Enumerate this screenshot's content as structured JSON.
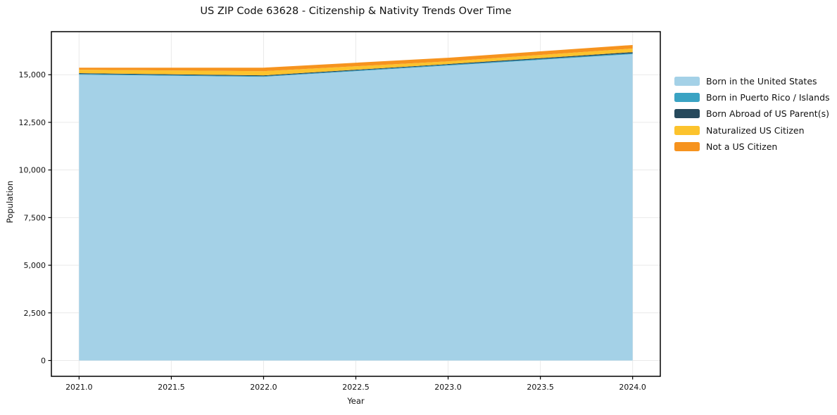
{
  "title": "US ZIP Code 63628 - Citizenship & Nativity Trends Over Time",
  "chart_data": {
    "type": "area",
    "stacked": true,
    "title": "US ZIP Code 63628 - Citizenship & Nativity Trends Over Time",
    "xlabel": "Year",
    "ylabel": "Population",
    "x": [
      2021,
      2022,
      2023,
      2024
    ],
    "series": [
      {
        "name": "Born in the United States",
        "color": "#a4d1e7",
        "values": [
          15000,
          14890,
          15480,
          16080
        ]
      },
      {
        "name": "Born in Puerto Rico / Islands",
        "color": "#3aa3c3",
        "values": [
          40,
          35,
          40,
          45
        ]
      },
      {
        "name": "Born Abroad of US Parent(s)",
        "color": "#26495c",
        "values": [
          40,
          40,
          40,
          60
        ]
      },
      {
        "name": "Naturalized US Citizen",
        "color": "#fcc32d",
        "values": [
          180,
          220,
          140,
          190
        ]
      },
      {
        "name": "Not a US Citizen",
        "color": "#f6931e",
        "values": [
          110,
          185,
          190,
          185
        ]
      }
    ],
    "xticks": [
      {
        "v": 2021.0,
        "label": "2021.0"
      },
      {
        "v": 2021.5,
        "label": "2021.5"
      },
      {
        "v": 2022.0,
        "label": "2022.0"
      },
      {
        "v": 2022.5,
        "label": "2022.5"
      },
      {
        "v": 2023.0,
        "label": "2023.0"
      },
      {
        "v": 2023.5,
        "label": "2023.5"
      },
      {
        "v": 2024.0,
        "label": "2024.0"
      }
    ],
    "yticks": [
      {
        "v": 0,
        "label": "0"
      },
      {
        "v": 2500,
        "label": "2,500"
      },
      {
        "v": 5000,
        "label": "5,000"
      },
      {
        "v": 7500,
        "label": "7,500"
      },
      {
        "v": 10000,
        "label": "10,000"
      },
      {
        "v": 12500,
        "label": "12,500"
      },
      {
        "v": 15000,
        "label": "15,000"
      }
    ],
    "xlim": [
      2020.85,
      2024.15
    ],
    "ylim": [
      -830,
      17260
    ],
    "grid": true,
    "grid_color": "#e9e9e9",
    "axis_color": "#000000",
    "legend_position": "right"
  }
}
